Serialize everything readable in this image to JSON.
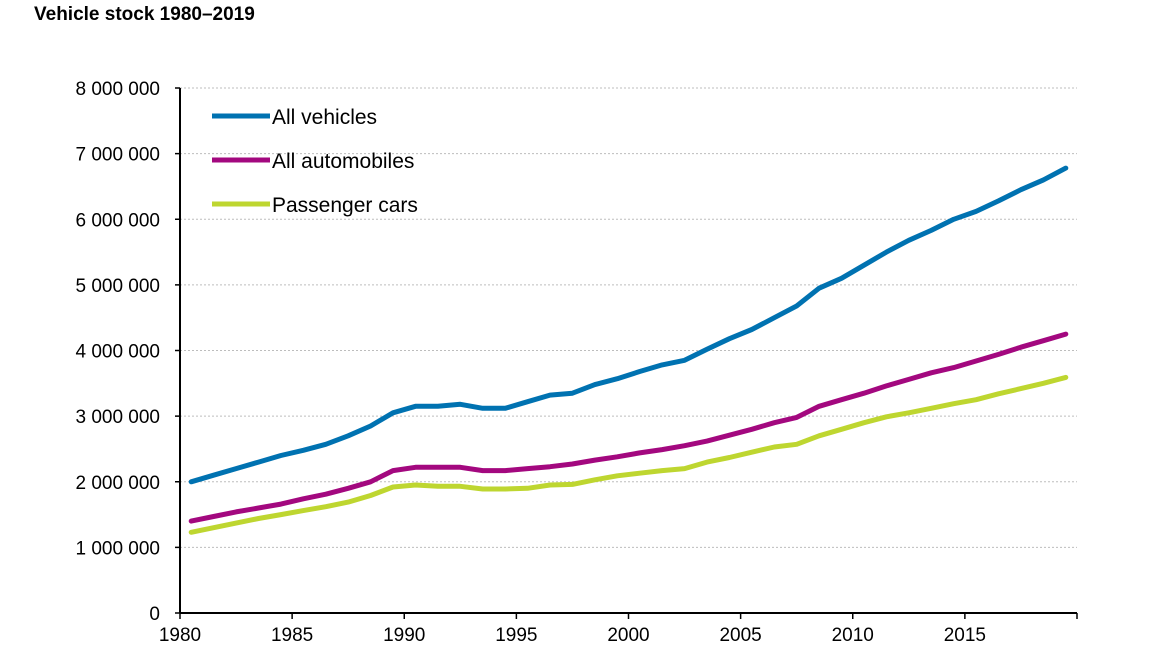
{
  "chart_data": {
    "type": "line",
    "title": "Vehicle stock 1980–2019",
    "xlabel": "",
    "ylabel": "",
    "ylim": [
      0,
      8000000
    ],
    "yticks": [
      "0",
      "1 000 000",
      "2 000 000",
      "3 000 000",
      "4 000 000",
      "5 000 000",
      "6 000 000",
      "7 000 000",
      "8 000 000"
    ],
    "xticks": [
      "1980",
      "1985",
      "1990",
      "1995",
      "2000",
      "2005",
      "2010",
      "2015"
    ],
    "grid": "horizontal dotted",
    "legend": "top-left",
    "x": [
      1980,
      1981,
      1982,
      1983,
      1984,
      1985,
      1986,
      1987,
      1988,
      1989,
      1990,
      1991,
      1992,
      1993,
      1994,
      1995,
      1996,
      1997,
      1998,
      1999,
      2000,
      2001,
      2002,
      2003,
      2004,
      2005,
      2006,
      2007,
      2008,
      2009,
      2010,
      2011,
      2012,
      2013,
      2014,
      2015,
      2016,
      2017,
      2018,
      2019
    ],
    "series": [
      {
        "name": "All vehicles",
        "color": "#0072b1",
        "values": [
          2000000,
          2100000,
          2200000,
          2300000,
          2400000,
          2480000,
          2570000,
          2700000,
          2850000,
          3050000,
          3150000,
          3150000,
          3180000,
          3120000,
          3120000,
          3220000,
          3320000,
          3350000,
          3480000,
          3570000,
          3680000,
          3780000,
          3850000,
          4020000,
          4180000,
          4320000,
          4500000,
          4680000,
          4950000,
          5100000,
          5300000,
          5500000,
          5680000,
          5830000,
          6000000,
          6120000,
          6280000,
          6450000,
          6600000,
          6780000
        ]
      },
      {
        "name": "All automobiles",
        "color": "#a3087f",
        "values": [
          1400000,
          1470000,
          1540000,
          1600000,
          1660000,
          1740000,
          1810000,
          1900000,
          2000000,
          2170000,
          2220000,
          2220000,
          2220000,
          2170000,
          2170000,
          2200000,
          2230000,
          2270000,
          2330000,
          2380000,
          2440000,
          2490000,
          2550000,
          2620000,
          2710000,
          2800000,
          2900000,
          2980000,
          3150000,
          3250000,
          3350000,
          3460000,
          3560000,
          3660000,
          3740000,
          3840000,
          3940000,
          4050000,
          4150000,
          4250000
        ]
      },
      {
        "name": "Passenger cars",
        "color": "#bed630",
        "values": [
          1230000,
          1300000,
          1370000,
          1440000,
          1500000,
          1560000,
          1620000,
          1690000,
          1790000,
          1920000,
          1950000,
          1930000,
          1930000,
          1890000,
          1890000,
          1900000,
          1950000,
          1960000,
          2030000,
          2090000,
          2130000,
          2170000,
          2200000,
          2300000,
          2370000,
          2450000,
          2530000,
          2570000,
          2700000,
          2800000,
          2900000,
          2990000,
          3050000,
          3120000,
          3190000,
          3250000,
          3340000,
          3420000,
          3500000,
          3590000
        ]
      }
    ]
  }
}
